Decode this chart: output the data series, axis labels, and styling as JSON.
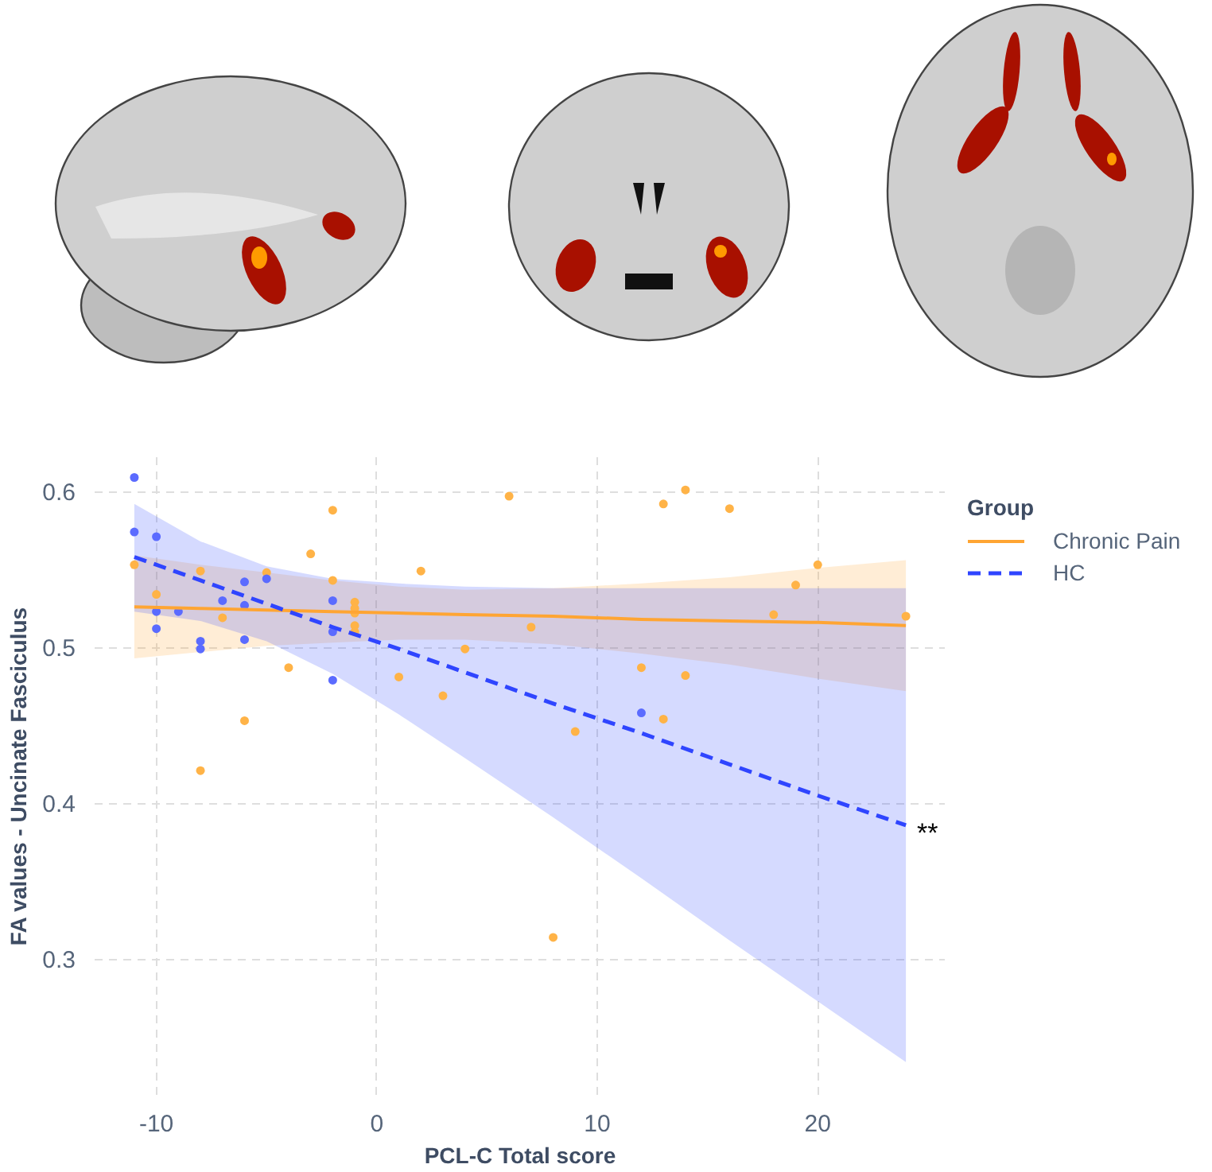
{
  "chart_data": {
    "type": "scatter",
    "xlabel": "PCL-C Total score",
    "ylabel": "FA values - Uncinate Fasciculus",
    "legend_title": "Group",
    "legend": "right",
    "grid": true,
    "xlim": [
      -12.8,
      25.8
    ],
    "ylim": [
      0.213,
      0.622
    ],
    "xticks": [
      -10,
      0,
      10,
      20
    ],
    "yticks": [
      0.3,
      0.4,
      0.5,
      0.6
    ],
    "annotations": [
      {
        "text": "**",
        "x": 24,
        "y": 0.386
      }
    ],
    "series": [
      {
        "type": "scatter",
        "color": "#ffb347",
        "marker": "circle",
        "x": [
          -11,
          -10,
          -8,
          -8,
          -7,
          -6,
          -5,
          -4,
          -3,
          -2,
          -2,
          -1,
          -1,
          -1,
          -1,
          -1,
          1,
          2,
          3,
          4,
          6,
          7,
          8,
          9,
          12,
          13,
          13,
          14,
          14,
          16,
          18,
          19,
          20,
          24
        ],
        "values": [
          0.553,
          0.534,
          0.549,
          0.421,
          0.519,
          0.453,
          0.548,
          0.487,
          0.56,
          0.588,
          0.543,
          0.529,
          0.525,
          0.522,
          0.514,
          0.51,
          0.481,
          0.549,
          0.469,
          0.499,
          0.597,
          0.513,
          0.314,
          0.446,
          0.487,
          0.592,
          0.454,
          0.601,
          0.482,
          0.589,
          0.521,
          0.54,
          0.553,
          0.52
        ]
      },
      {
        "type": "scatter",
        "color": "#5b6bff",
        "marker": "circle",
        "x": [
          -11,
          -11,
          -10,
          -10,
          -10,
          -9,
          -8,
          -8,
          -7,
          -6,
          -6,
          -6,
          -5,
          -2,
          -2,
          -2,
          12
        ],
        "values": [
          0.609,
          0.574,
          0.571,
          0.523,
          0.512,
          0.523,
          0.504,
          0.499,
          0.53,
          0.542,
          0.527,
          0.505,
          0.544,
          0.53,
          0.51,
          0.479,
          0.458
        ]
      },
      {
        "type": "line",
        "name": "Chronic Pain",
        "color": "#ffa533",
        "line_style": "solid",
        "x": [
          -11,
          -8,
          -5,
          -2,
          1,
          4,
          8,
          12,
          16,
          20,
          24
        ],
        "values": [
          0.526,
          0.525,
          0.524,
          0.523,
          0.522,
          0.521,
          0.52,
          0.518,
          0.517,
          0.516,
          0.514
        ],
        "lower": [
          0.493,
          0.497,
          0.501,
          0.503,
          0.505,
          0.505,
          0.502,
          0.496,
          0.489,
          0.48,
          0.472
        ],
        "upper": [
          0.559,
          0.553,
          0.548,
          0.543,
          0.539,
          0.537,
          0.538,
          0.541,
          0.545,
          0.551,
          0.556
        ]
      },
      {
        "type": "line",
        "name": "HC",
        "color": "#2f45ff",
        "line_style": "dashed",
        "x": [
          -11,
          -8,
          -5,
          -2,
          1,
          4,
          8,
          12,
          16,
          20,
          24
        ],
        "values": [
          0.558,
          0.543,
          0.528,
          0.513,
          0.499,
          0.484,
          0.464,
          0.445,
          0.425,
          0.405,
          0.386
        ],
        "lower": [
          0.523,
          0.517,
          0.504,
          0.483,
          0.457,
          0.429,
          0.391,
          0.352,
          0.312,
          0.273,
          0.234
        ],
        "upper": [
          0.592,
          0.568,
          0.552,
          0.544,
          0.541,
          0.539,
          0.538,
          0.538,
          0.538,
          0.538,
          0.538
        ]
      }
    ]
  }
}
